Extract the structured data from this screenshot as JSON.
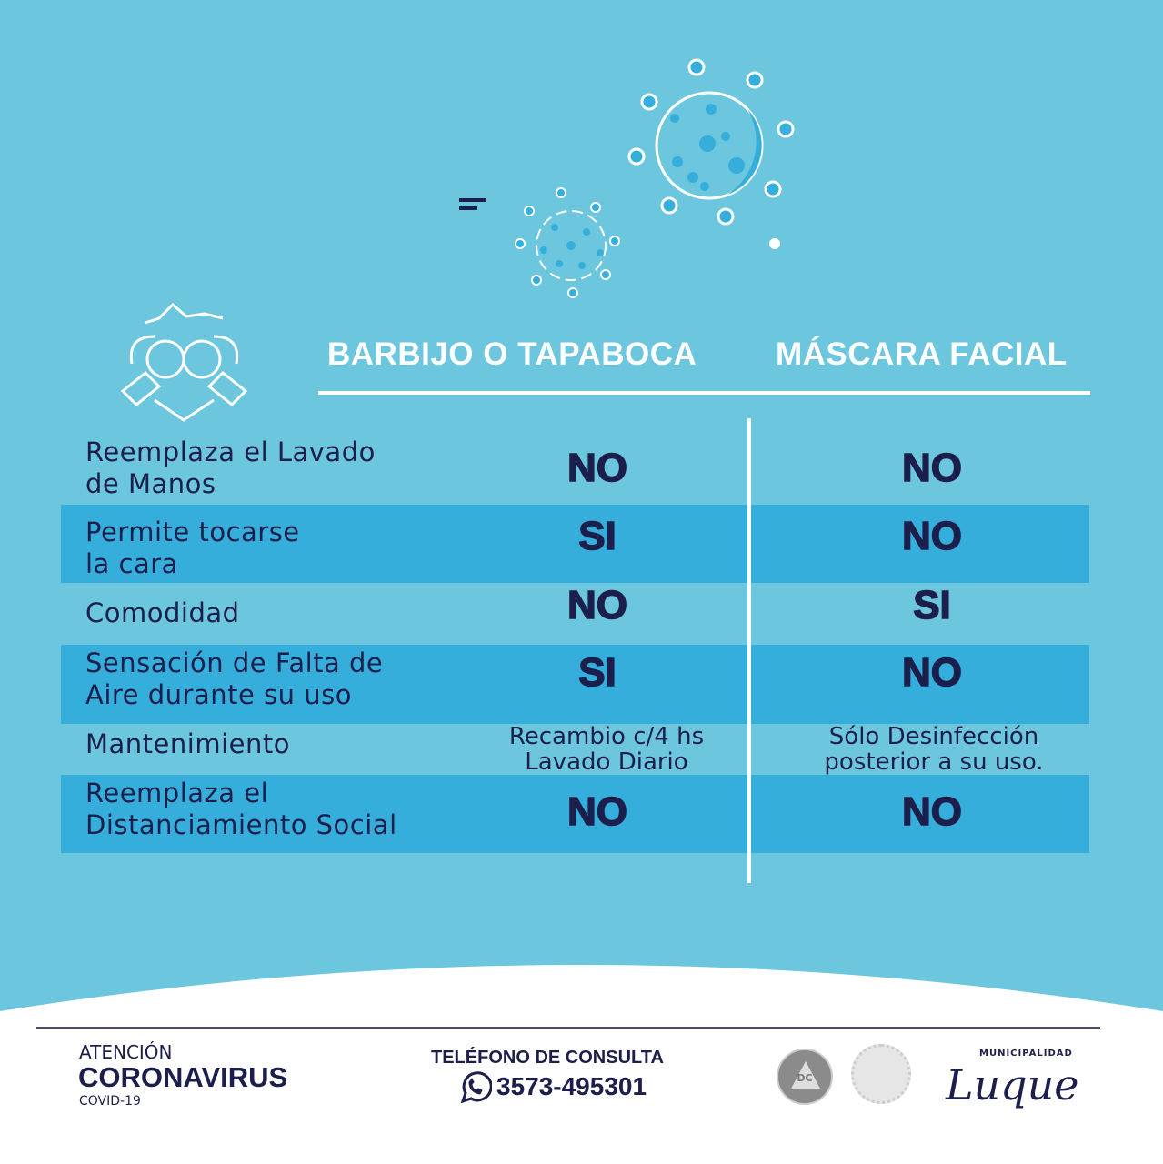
{
  "table": {
    "headers": [
      "BARBIJO O TAPABOCA",
      "MÁSCARA FACIAL"
    ],
    "rows": [
      {
        "label": [
          "Reemplaza el Lavado",
          "de Manos"
        ],
        "col1": "NO",
        "col2": "NO"
      },
      {
        "label": [
          "Permite tocarse",
          "la cara"
        ],
        "col1": "SI",
        "col2": "NO"
      },
      {
        "label": [
          "Comodidad"
        ],
        "col1": "NO",
        "col2": "SI"
      },
      {
        "label": [
          "Sensación de Falta de",
          "Aire durante su uso"
        ],
        "col1": "SI",
        "col2": "NO"
      },
      {
        "label": [
          "Mantenimiento"
        ],
        "col1": [
          "Recambio c/4 hs",
          "Lavado Diario"
        ],
        "col2": [
          "Sólo Desinfección",
          "posterior a su uso."
        ]
      },
      {
        "label": [
          "Reemplaza el",
          "Distanciamiento Social"
        ],
        "col1": "NO",
        "col2": "NO"
      }
    ]
  },
  "footer": {
    "atencion": "ATENCIÓN",
    "coronavirus": "CORONAVIRUS",
    "covid": "COVID-19",
    "phone_title": "TELÉFONO DE CONSULTA",
    "phone": "3573-495301",
    "logo_dc": "DC",
    "municipalidad": "MUNICIPALIDAD",
    "luque": "Luque"
  },
  "colors": {
    "background": "#6cc6de",
    "stripe": "#35aedc",
    "text": "#1c1f4b"
  }
}
